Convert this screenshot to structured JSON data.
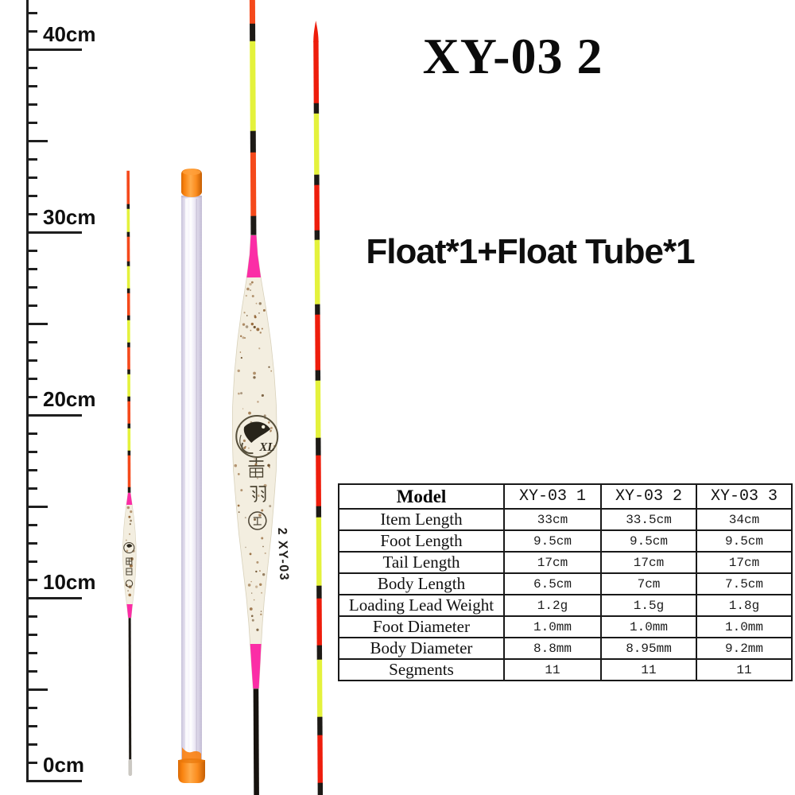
{
  "product": {
    "title": "XY-03 2",
    "package_contents": "Float*1+Float Tube*1"
  },
  "ruler": {
    "labels": [
      "40cm",
      "30cm",
      "20cm",
      "10cm",
      "0cm"
    ]
  },
  "float_markings": {
    "brand_logo": "XL",
    "brand_chinese": "霞羽",
    "model_on_body": "2 XY-03"
  },
  "spec_table": {
    "header": {
      "label": "Model",
      "models": [
        "XY-03 1",
        "XY-03 2",
        "XY-03 3"
      ]
    },
    "rows": [
      {
        "label": "Item Length",
        "values": [
          "33cm",
          "33.5cm",
          "34cm"
        ]
      },
      {
        "label": "Foot Length",
        "values": [
          "9.5cm",
          "9.5cm",
          "9.5cm"
        ]
      },
      {
        "label": "Tail Length",
        "values": [
          "17cm",
          "17cm",
          "17cm"
        ]
      },
      {
        "label": "Body Length",
        "values": [
          "6.5cm",
          "7cm",
          "7.5cm"
        ]
      },
      {
        "label": "Loading Lead Weight",
        "values": [
          "1.2g",
          "1.5g",
          "1.8g"
        ]
      },
      {
        "label": "Foot Diameter",
        "values": [
          "1.0mm",
          "1.0mm",
          "1.0mm"
        ]
      },
      {
        "label": "Body Diameter",
        "values": [
          "8.8mm",
          "8.95mm",
          "9.2mm"
        ]
      },
      {
        "label": "Segments",
        "values": [
          "11",
          "11",
          "11"
        ]
      }
    ]
  },
  "colors": {
    "tail_orange_red": "#f5491b",
    "tail_red": "#ee1d0c",
    "tail_yellow": "#e4f23c",
    "band_black": "#1d1a16",
    "accent_pink": "#fb2da6",
    "body_cream": "#f3eee0",
    "speckle_brown": "#8a5a28",
    "tube_cap_orange": "#fa8a16",
    "tube_tint": "#dcd6e8",
    "table_border": "#191919"
  }
}
